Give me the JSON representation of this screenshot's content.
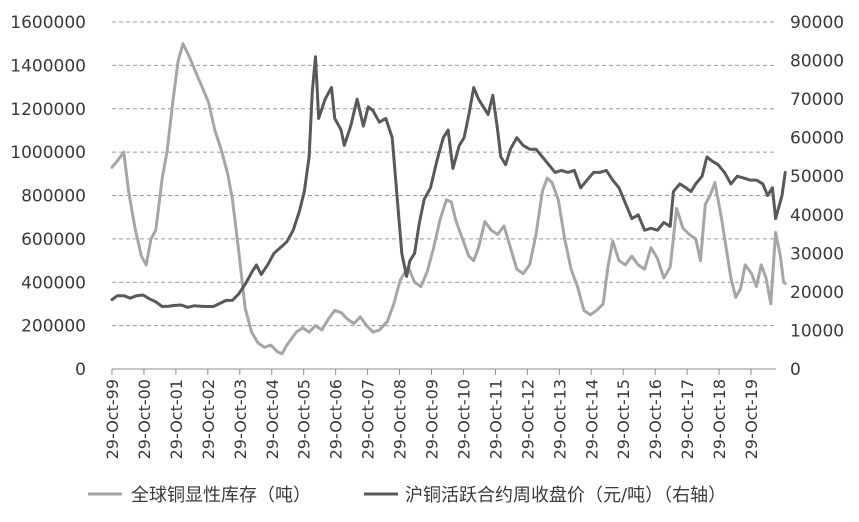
{
  "chart_data": {
    "type": "line",
    "title": "",
    "grid": true,
    "legend_position": "bottom",
    "y_left": {
      "min": 0,
      "max": 1600000,
      "ticks": [
        "0",
        "200000",
        "400000",
        "600000",
        "800000",
        "1000000",
        "1200000",
        "1400000",
        "1600000"
      ]
    },
    "y_right": {
      "min": 0,
      "max": 90000,
      "ticks": [
        "0",
        "10000",
        "20000",
        "30000",
        "40000",
        "50000",
        "60000",
        "70000",
        "80000",
        "90000"
      ]
    },
    "x_ticks": [
      "29-Oct-99",
      "29-Oct-00",
      "29-Oct-01",
      "29-Oct-02",
      "29-Oct-03",
      "29-Oct-04",
      "29-Oct-05",
      "29-Oct-06",
      "29-Oct-07",
      "29-Oct-08",
      "29-Oct-09",
      "29-Oct-10",
      "29-Oct-11",
      "29-Oct-12",
      "29-Oct-13",
      "29-Oct-14",
      "29-Oct-15",
      "29-Oct-16",
      "29-Oct-17",
      "29-Oct-18",
      "29-Oct-19"
    ],
    "x_range": [
      1999.83,
      2020.6
    ],
    "series": [
      {
        "name": "全球铜显性库存（吨）",
        "axis": "left",
        "color": "#a6a6a6",
        "points": [
          [
            1999.83,
            930000
          ],
          [
            2000.0,
            960000
          ],
          [
            2000.2,
            1000000
          ],
          [
            2000.35,
            820000
          ],
          [
            2000.55,
            650000
          ],
          [
            2000.75,
            520000
          ],
          [
            2000.9,
            480000
          ],
          [
            2001.05,
            600000
          ],
          [
            2001.2,
            640000
          ],
          [
            2001.4,
            880000
          ],
          [
            2001.55,
            1000000
          ],
          [
            2001.75,
            1250000
          ],
          [
            2001.9,
            1420000
          ],
          [
            2002.05,
            1500000
          ],
          [
            2002.25,
            1440000
          ],
          [
            2002.45,
            1370000
          ],
          [
            2002.65,
            1300000
          ],
          [
            2002.85,
            1230000
          ],
          [
            2003.05,
            1100000
          ],
          [
            2003.25,
            1010000
          ],
          [
            2003.45,
            900000
          ],
          [
            2003.6,
            780000
          ],
          [
            2003.8,
            540000
          ],
          [
            2004.0,
            280000
          ],
          [
            2004.2,
            170000
          ],
          [
            2004.4,
            120000
          ],
          [
            2004.6,
            100000
          ],
          [
            2004.8,
            110000
          ],
          [
            2005.0,
            80000
          ],
          [
            2005.15,
            70000
          ],
          [
            2005.3,
            110000
          ],
          [
            2005.45,
            140000
          ],
          [
            2005.6,
            170000
          ],
          [
            2005.8,
            190000
          ],
          [
            2006.0,
            170000
          ],
          [
            2006.2,
            200000
          ],
          [
            2006.4,
            180000
          ],
          [
            2006.6,
            230000
          ],
          [
            2006.8,
            270000
          ],
          [
            2007.0,
            260000
          ],
          [
            2007.2,
            230000
          ],
          [
            2007.4,
            210000
          ],
          [
            2007.6,
            240000
          ],
          [
            2007.8,
            200000
          ],
          [
            2008.0,
            170000
          ],
          [
            2008.2,
            180000
          ],
          [
            2008.45,
            220000
          ],
          [
            2008.65,
            300000
          ],
          [
            2008.85,
            410000
          ],
          [
            2009.1,
            470000
          ],
          [
            2009.3,
            400000
          ],
          [
            2009.5,
            380000
          ],
          [
            2009.7,
            450000
          ],
          [
            2009.9,
            560000
          ],
          [
            2010.1,
            690000
          ],
          [
            2010.3,
            780000
          ],
          [
            2010.45,
            770000
          ],
          [
            2010.6,
            680000
          ],
          [
            2010.8,
            600000
          ],
          [
            2011.0,
            520000
          ],
          [
            2011.15,
            500000
          ],
          [
            2011.3,
            560000
          ],
          [
            2011.5,
            680000
          ],
          [
            2011.7,
            640000
          ],
          [
            2011.9,
            620000
          ],
          [
            2012.1,
            660000
          ],
          [
            2012.3,
            560000
          ],
          [
            2012.5,
            460000
          ],
          [
            2012.7,
            440000
          ],
          [
            2012.9,
            480000
          ],
          [
            2013.1,
            620000
          ],
          [
            2013.3,
            820000
          ],
          [
            2013.45,
            880000
          ],
          [
            2013.6,
            860000
          ],
          [
            2013.8,
            780000
          ],
          [
            2014.0,
            600000
          ],
          [
            2014.2,
            460000
          ],
          [
            2014.4,
            380000
          ],
          [
            2014.6,
            270000
          ],
          [
            2014.8,
            250000
          ],
          [
            2015.0,
            270000
          ],
          [
            2015.2,
            300000
          ],
          [
            2015.35,
            470000
          ],
          [
            2015.5,
            590000
          ],
          [
            2015.7,
            500000
          ],
          [
            2015.9,
            480000
          ],
          [
            2016.1,
            520000
          ],
          [
            2016.3,
            480000
          ],
          [
            2016.5,
            460000
          ],
          [
            2016.7,
            560000
          ],
          [
            2016.9,
            510000
          ],
          [
            2017.1,
            420000
          ],
          [
            2017.3,
            470000
          ],
          [
            2017.5,
            740000
          ],
          [
            2017.7,
            650000
          ],
          [
            2017.9,
            620000
          ],
          [
            2018.1,
            600000
          ],
          [
            2018.25,
            500000
          ],
          [
            2018.4,
            760000
          ],
          [
            2018.55,
            800000
          ],
          [
            2018.7,
            860000
          ],
          [
            2018.9,
            700000
          ],
          [
            2019.05,
            560000
          ],
          [
            2019.2,
            420000
          ],
          [
            2019.35,
            330000
          ],
          [
            2019.5,
            370000
          ],
          [
            2019.65,
            480000
          ],
          [
            2019.85,
            440000
          ],
          [
            2020.0,
            380000
          ],
          [
            2020.15,
            480000
          ],
          [
            2020.3,
            420000
          ],
          [
            2020.45,
            300000
          ],
          [
            2020.6,
            630000
          ],
          [
            2020.75,
            520000
          ],
          [
            2020.85,
            400000
          ],
          [
            2020.9,
            395000
          ]
        ]
      },
      {
        "name": "沪铜活跃合约周收盘价（元/吨）（右轴）",
        "axis": "right",
        "color": "#595959",
        "points": [
          [
            1999.83,
            18000
          ],
          [
            2000.0,
            19000
          ],
          [
            2000.2,
            19000
          ],
          [
            2000.4,
            18400
          ],
          [
            2000.6,
            19000
          ],
          [
            2000.8,
            19200
          ],
          [
            2001.0,
            18200
          ],
          [
            2001.2,
            17400
          ],
          [
            2001.4,
            16200
          ],
          [
            2001.6,
            16300
          ],
          [
            2001.8,
            16500
          ],
          [
            2002.0,
            16600
          ],
          [
            2002.2,
            16000
          ],
          [
            2002.4,
            16400
          ],
          [
            2002.6,
            16300
          ],
          [
            2002.8,
            16200
          ],
          [
            2003.0,
            16200
          ],
          [
            2003.2,
            17000
          ],
          [
            2003.4,
            17800
          ],
          [
            2003.6,
            17800
          ],
          [
            2003.8,
            19500
          ],
          [
            2004.0,
            22000
          ],
          [
            2004.2,
            25000
          ],
          [
            2004.35,
            27000
          ],
          [
            2004.5,
            24500
          ],
          [
            2004.7,
            27000
          ],
          [
            2004.9,
            30000
          ],
          [
            2005.1,
            31500
          ],
          [
            2005.3,
            33000
          ],
          [
            2005.5,
            36000
          ],
          [
            2005.7,
            41000
          ],
          [
            2005.85,
            46000
          ],
          [
            2006.0,
            55000
          ],
          [
            2006.1,
            72000
          ],
          [
            2006.2,
            81000
          ],
          [
            2006.3,
            65000
          ],
          [
            2006.5,
            70000
          ],
          [
            2006.7,
            73000
          ],
          [
            2006.8,
            65000
          ],
          [
            2007.0,
            62000
          ],
          [
            2007.1,
            58000
          ],
          [
            2007.3,
            63000
          ],
          [
            2007.5,
            70000
          ],
          [
            2007.7,
            63000
          ],
          [
            2007.85,
            68000
          ],
          [
            2008.0,
            67000
          ],
          [
            2008.2,
            64000
          ],
          [
            2008.4,
            65000
          ],
          [
            2008.6,
            60000
          ],
          [
            2008.75,
            45000
          ],
          [
            2008.9,
            30000
          ],
          [
            2009.05,
            24000
          ],
          [
            2009.15,
            28000
          ],
          [
            2009.3,
            30000
          ],
          [
            2009.45,
            38000
          ],
          [
            2009.6,
            44000
          ],
          [
            2009.8,
            47000
          ],
          [
            2010.0,
            54000
          ],
          [
            2010.2,
            60000
          ],
          [
            2010.35,
            62000
          ],
          [
            2010.5,
            52000
          ],
          [
            2010.7,
            58000
          ],
          [
            2010.85,
            60000
          ],
          [
            2011.0,
            66000
          ],
          [
            2011.15,
            73000
          ],
          [
            2011.3,
            70000
          ],
          [
            2011.45,
            68000
          ],
          [
            2011.6,
            66000
          ],
          [
            2011.75,
            71000
          ],
          [
            2011.9,
            62000
          ],
          [
            2012.0,
            55000
          ],
          [
            2012.15,
            53000
          ],
          [
            2012.3,
            57000
          ],
          [
            2012.5,
            60000
          ],
          [
            2012.7,
            58000
          ],
          [
            2012.9,
            57000
          ],
          [
            2013.1,
            57000
          ],
          [
            2013.3,
            55000
          ],
          [
            2013.5,
            53000
          ],
          [
            2013.7,
            51000
          ],
          [
            2013.9,
            51500
          ],
          [
            2014.1,
            51000
          ],
          [
            2014.3,
            51500
          ],
          [
            2014.5,
            47000
          ],
          [
            2014.7,
            49000
          ],
          [
            2014.9,
            51000
          ],
          [
            2015.1,
            51000
          ],
          [
            2015.3,
            51500
          ],
          [
            2015.5,
            49000
          ],
          [
            2015.7,
            47000
          ],
          [
            2015.9,
            43000
          ],
          [
            2016.1,
            39000
          ],
          [
            2016.3,
            40000
          ],
          [
            2016.5,
            36000
          ],
          [
            2016.7,
            36500
          ],
          [
            2016.9,
            36000
          ],
          [
            2017.1,
            38000
          ],
          [
            2017.3,
            37000
          ],
          [
            2017.4,
            46000
          ],
          [
            2017.6,
            48000
          ],
          [
            2017.8,
            47000
          ],
          [
            2017.95,
            46000
          ],
          [
            2018.1,
            48000
          ],
          [
            2018.3,
            50000
          ],
          [
            2018.45,
            55000
          ],
          [
            2018.6,
            54000
          ],
          [
            2018.8,
            53000
          ],
          [
            2019.0,
            51000
          ],
          [
            2019.2,
            48000
          ],
          [
            2019.4,
            50000
          ],
          [
            2019.6,
            49500
          ],
          [
            2019.8,
            49000
          ],
          [
            2020.0,
            49000
          ],
          [
            2020.2,
            48000
          ],
          [
            2020.35,
            45000
          ],
          [
            2020.5,
            47000
          ],
          [
            2020.6,
            39000
          ],
          [
            2020.7,
            42000
          ],
          [
            2020.8,
            45000
          ],
          [
            2020.9,
            51000
          ]
        ]
      }
    ],
    "legend": [
      {
        "label": "全球铜显性库存（吨）",
        "color": "#a6a6a6"
      },
      {
        "label": "沪铜活跃合约周收盘价（元/吨）（右轴）",
        "color": "#595959"
      }
    ]
  }
}
